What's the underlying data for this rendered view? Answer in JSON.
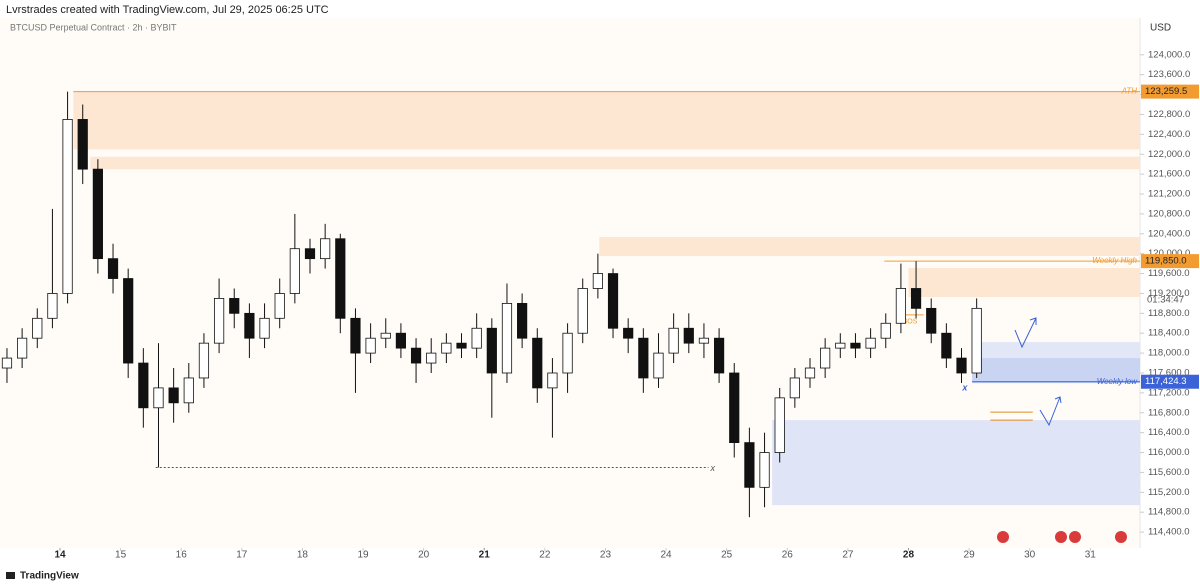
{
  "chart_data": {
    "type": "candlestick",
    "title": "Lvrstrades created with TradingView.com, Jul 29, 2025 06:25 UTC",
    "subtitle": "BTCUSD Perpetual Contract · 2h · BYBIT",
    "currency": "USD",
    "countdown": "01:34:47",
    "footer": "TradingView",
    "up_color": "#ffffff",
    "down_color": "#111111",
    "border_color": "#111111",
    "xlim": [
      13.01,
      31.82
    ],
    "ylim": [
      114080,
      124700
    ],
    "xticks": [
      14,
      15,
      16,
      17,
      18,
      19,
      20,
      21,
      22,
      23,
      24,
      25,
      26,
      27,
      28,
      29,
      30,
      31
    ],
    "xticks_bold": [
      14,
      21,
      28
    ],
    "yticks": [
      {
        "value": 114400,
        "label": "114,400.0"
      },
      {
        "value": 114800,
        "label": "114,800.0"
      },
      {
        "value": 115200,
        "label": "115,200.0"
      },
      {
        "value": 115600,
        "label": "115,600.0"
      },
      {
        "value": 116000,
        "label": "116,000.0"
      },
      {
        "value": 116400,
        "label": "116,400.0"
      },
      {
        "value": 116800,
        "label": "116,800.0"
      },
      {
        "value": 117200,
        "label": "117,200.0"
      },
      {
        "value": 117600,
        "label": "117,600.0"
      },
      {
        "value": 118000,
        "label": "118,000.0"
      },
      {
        "value": 118400,
        "label": "118,400.0"
      },
      {
        "value": 118800,
        "label": "118,800.0"
      },
      {
        "value": 119200,
        "label": "119,200.0"
      },
      {
        "value": 119600,
        "label": "119,600.0"
      },
      {
        "value": 120000,
        "label": "120,000.0"
      },
      {
        "value": 120400,
        "label": "120,400.0"
      },
      {
        "value": 120800,
        "label": "120,800.0"
      },
      {
        "value": 121200,
        "label": "121,200.0"
      },
      {
        "value": 121600,
        "label": "121,600.0"
      },
      {
        "value": 122000,
        "label": "122,000.0"
      },
      {
        "value": 122400,
        "label": "122,400.0"
      },
      {
        "value": 122800,
        "label": "122,800.0"
      },
      {
        "value": 123200,
        "label": "123,200.0"
      },
      {
        "value": 123600,
        "label": "123,600.0"
      },
      {
        "value": 124000,
        "label": "124,000.0"
      }
    ],
    "x": [
      13.125,
      13.375,
      13.625,
      13.875,
      14.125,
      14.375,
      14.625,
      14.875,
      15.125,
      15.375,
      15.625,
      15.875,
      16.125,
      16.375,
      16.625,
      16.875,
      17.125,
      17.375,
      17.625,
      17.875,
      18.125,
      18.375,
      18.625,
      18.875,
      19.125,
      19.375,
      19.625,
      19.875,
      20.125,
      20.375,
      20.625,
      20.875,
      21.125,
      21.375,
      21.625,
      21.875,
      22.125,
      22.375,
      22.625,
      22.875,
      23.125,
      23.375,
      23.625,
      23.875,
      24.125,
      24.375,
      24.625,
      24.875,
      25.125,
      25.375,
      25.625,
      25.875,
      26.125,
      26.375,
      26.625,
      26.875,
      27.125,
      27.375,
      27.625,
      27.875,
      28.125,
      28.375,
      28.625,
      28.875,
      29.125
    ],
    "open": [
      117700,
      117900,
      118300,
      118700,
      119200,
      122700,
      121700,
      119900,
      119500,
      117800,
      116900,
      117300,
      117000,
      117500,
      118200,
      119100,
      118800,
      118300,
      118700,
      119200,
      120100,
      119900,
      120300,
      118700,
      118000,
      118300,
      118400,
      118100,
      117800,
      118000,
      118200,
      118100,
      118500,
      117600,
      119000,
      118300,
      117300,
      117600,
      118400,
      119300,
      119600,
      118500,
      118300,
      117500,
      118000,
      118500,
      118200,
      118300,
      117600,
      116200,
      115300,
      116000,
      117100,
      117500,
      117700,
      118100,
      118200,
      118100,
      118300,
      118600,
      119300,
      118900,
      118400,
      117900,
      117600
    ],
    "high": [
      118100,
      118500,
      118900,
      120900,
      123259.5,
      123000,
      121900,
      120200,
      119700,
      118100,
      118200,
      117700,
      117800,
      118400,
      119500,
      119300,
      119000,
      119000,
      119500,
      120800,
      120300,
      120600,
      120400,
      118900,
      118600,
      118700,
      118600,
      118300,
      118300,
      118400,
      118400,
      118800,
      118700,
      119400,
      119200,
      118500,
      117900,
      118600,
      119500,
      120000,
      119700,
      118700,
      118500,
      118400,
      118800,
      118800,
      118600,
      118500,
      117800,
      116500,
      116400,
      117300,
      117700,
      117900,
      118300,
      118400,
      118400,
      118500,
      118800,
      119800,
      119850,
      119100,
      118600,
      118100,
      119100
    ],
    "low": [
      117400,
      117700,
      118100,
      118500,
      119000,
      121400,
      119600,
      119200,
      117500,
      116500,
      115700,
      116600,
      116800,
      117300,
      118000,
      118500,
      117900,
      118100,
      118500,
      119000,
      119600,
      119700,
      118400,
      117200,
      117800,
      118100,
      117900,
      117400,
      117600,
      117800,
      117900,
      117900,
      116700,
      117400,
      118100,
      117000,
      116300,
      117200,
      118200,
      119100,
      118300,
      118000,
      117200,
      117300,
      117800,
      118000,
      117900,
      117400,
      115900,
      114700,
      114900,
      115800,
      116900,
      117300,
      117500,
      117900,
      117900,
      117900,
      118100,
      118400,
      118700,
      118200,
      117700,
      117400,
      117500
    ],
    "close": [
      117900,
      118300,
      118700,
      119200,
      122700,
      121700,
      119900,
      119500,
      117800,
      116900,
      117300,
      117000,
      117500,
      118200,
      119100,
      118800,
      118300,
      118700,
      119200,
      120100,
      119900,
      120300,
      118700,
      118000,
      118300,
      118400,
      118100,
      117800,
      118000,
      118200,
      118100,
      118500,
      117600,
      119000,
      118300,
      117300,
      117600,
      118400,
      119300,
      119600,
      118500,
      118300,
      117500,
      118000,
      118500,
      118200,
      118300,
      117600,
      116200,
      115300,
      116000,
      117100,
      117500,
      117700,
      118100,
      118200,
      118100,
      118300,
      118600,
      119300,
      118900,
      118400,
      117900,
      117600,
      118900
    ],
    "zones": [
      {
        "x": [
          14.22,
          31.82
        ],
        "y": [
          123259.5,
          122100
        ],
        "color": "#fde6d2"
      },
      {
        "x": [
          14.5,
          31.82
        ],
        "y": [
          121950,
          121700
        ],
        "color": "#fde6d2"
      },
      {
        "x": [
          22.9,
          31.82
        ],
        "y": [
          120336,
          119953
        ],
        "color": "#fde6d2"
      },
      {
        "x": [
          28.0,
          31.82
        ],
        "y": [
          119712,
          119128
        ],
        "color": "#fde6d2"
      },
      {
        "x": [
          29.05,
          31.82
        ],
        "y": [
          118222,
          117397
        ],
        "color": "#e2e7f7"
      },
      {
        "x": [
          29.05,
          31.82
        ],
        "y": [
          117900,
          117397
        ],
        "color": "#c9d4f3"
      },
      {
        "x": [
          25.75,
          31.82
        ],
        "y": [
          116653,
          114942
        ],
        "color": "#dfe5f7"
      }
    ],
    "levels": [
      {
        "value": 123259.5,
        "x": [
          14.22,
          31.82
        ],
        "color": "#f29b30",
        "label": "ATH",
        "axis_label": "123,259.5"
      },
      {
        "value": 119850,
        "x": [
          27.6,
          31.82
        ],
        "color": "#f29b30",
        "label": "Weekly High",
        "axis_label": "119,850.0"
      },
      {
        "value": 117424.3,
        "x": [
          29.05,
          31.82
        ],
        "color": "#3b62d6",
        "label": "Weekly low",
        "axis_label": "117,424.3"
      },
      {
        "value": 115700,
        "x": [
          15.58,
          24.7
        ],
        "color": "#555555",
        "dashed": true,
        "label": "x"
      },
      {
        "value": 116814,
        "x": [
          29.35,
          30.05
        ],
        "color": "#e08a1e"
      },
      {
        "value": 116653,
        "x": [
          29.35,
          30.05
        ],
        "color": "#e08a1e"
      },
      {
        "value": 118770,
        "x": [
          27.8,
          28.25
        ],
        "color": "#f29b30",
        "label": "BOS"
      }
    ],
    "markers": [
      {
        "x": 28.93,
        "y": 117300,
        "label": "x"
      }
    ]
  }
}
